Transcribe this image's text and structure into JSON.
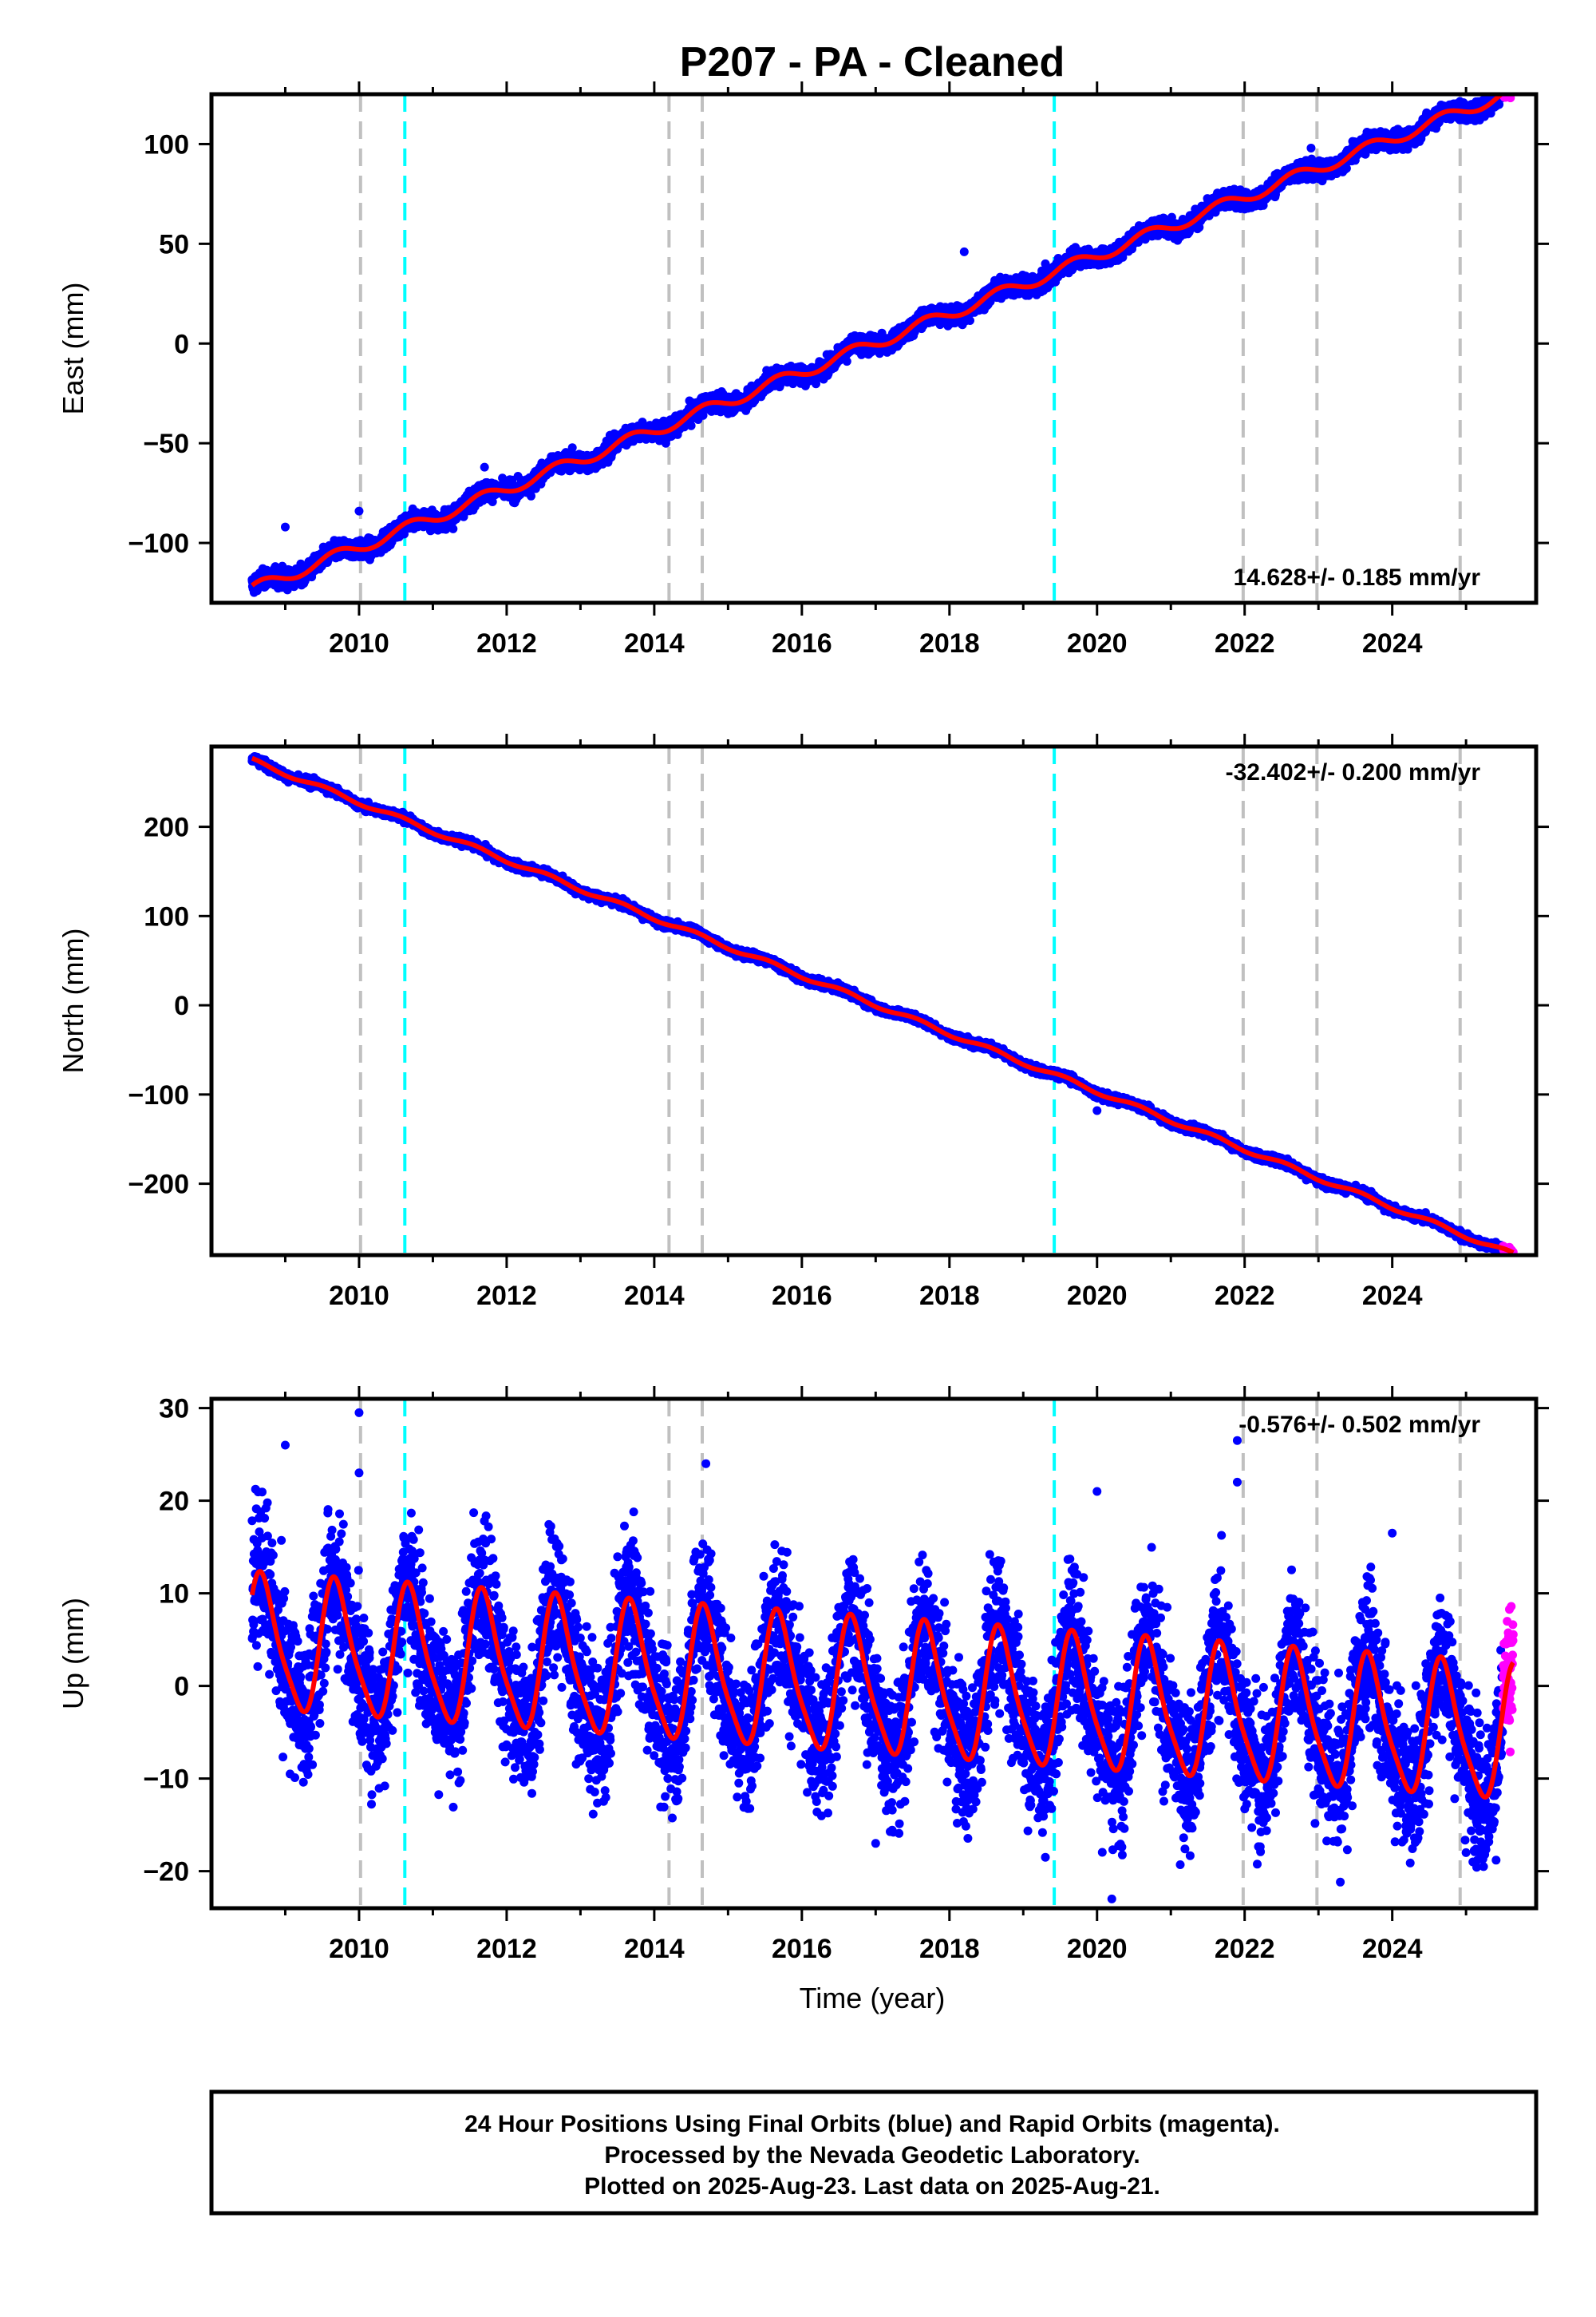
{
  "title": "P207  - PA - Cleaned",
  "xlabel": "Time (year)",
  "footer_lines": [
    "24 Hour Positions Using Final Orbits (blue) and Rapid Orbits (magenta).",
    "Processed by the Nevada Geodetic Laboratory.",
    "Plotted on 2025-Aug-23. Last data on 2025-Aug-21."
  ],
  "colors": {
    "final_orbits": "#0000ff",
    "rapid_orbits": "#ff00ff",
    "fit": "#ff0000",
    "equipment_change": "#c0c0c0",
    "earthquake": "#00ffff"
  },
  "chart_data": [
    {
      "type": "scatter",
      "name": "east",
      "ylabel": "East (mm)",
      "rate_label": "14.628+/- 0.185 mm/yr",
      "rate_position": "bottom-right",
      "xlim": [
        2008.0,
        2025.95
      ],
      "ylim": [
        -130,
        125
      ],
      "xticks": [
        2010,
        2012,
        2014,
        2016,
        2018,
        2020,
        2022,
        2024
      ],
      "yticks": [
        -100,
        -50,
        0,
        50,
        100
      ],
      "ytick_labels": [
        "−100",
        "−50",
        "0",
        "50",
        "100"
      ],
      "fit": {
        "t0": 2008.5,
        "start": -124,
        "slope": 14.628,
        "annual_amp": 3,
        "annual_phase": 0.4,
        "semiannual_amp": 0,
        "semiannual_phase": 0
      },
      "noise_mm": 2.2,
      "rapid_end_value": 116,
      "outliers": [
        [
          2009.0,
          -92
        ],
        [
          2010.0,
          -84
        ],
        [
          2011.7,
          -62
        ],
        [
          2013.4,
          -46
        ],
        [
          2018.2,
          46
        ],
        [
          2019.3,
          40
        ],
        [
          2022.9,
          98
        ]
      ]
    },
    {
      "type": "scatter",
      "name": "north",
      "ylabel": "North (mm)",
      "rate_label": "-32.402+/- 0.200 mm/yr",
      "rate_position": "top-right",
      "xlim": [
        2008.0,
        2025.95
      ],
      "ylim": [
        -280,
        290
      ],
      "xticks": [
        2010,
        2012,
        2014,
        2016,
        2018,
        2020,
        2022,
        2024
      ],
      "yticks": [
        -200,
        -100,
        0,
        100,
        200
      ],
      "ytick_labels": [
        "−200",
        "−100",
        "0",
        "100",
        "200"
      ],
      "fit": {
        "t0": 2008.5,
        "start": 276,
        "slope": -32.402,
        "annual_amp": 2.5,
        "annual_phase": 1.2,
        "semiannual_amp": 0,
        "semiannual_phase": 0
      },
      "noise_mm": 2.2,
      "rapid_end_value": -268,
      "outliers": [
        [
          2020.0,
          -118
        ]
      ]
    },
    {
      "type": "scatter",
      "name": "up",
      "ylabel": "Up (mm)",
      "rate_label": "-0.576+/- 0.502 mm/yr",
      "rate_position": "top-right",
      "xlim": [
        2008.0,
        2025.95
      ],
      "ylim": [
        -24,
        31
      ],
      "xticks": [
        2010,
        2012,
        2014,
        2016,
        2018,
        2020,
        2022,
        2024
      ],
      "yticks": [
        -20,
        -10,
        0,
        10,
        20,
        30
      ],
      "ytick_labels": [
        "−20",
        "−10",
        "0",
        "10",
        "20",
        "30"
      ],
      "fit": {
        "t0": 2008.5,
        "start": 4.5,
        "slope": -0.576,
        "annual_amp": 7.0,
        "annual_phase": 0.35,
        "semiannual_amp": 1.4,
        "semiannual_phase": 0.2
      },
      "noise_mm": 3.8,
      "rapid_end_value": -1,
      "outliers": [
        [
          2009.0,
          26
        ],
        [
          2010.0,
          29.5
        ],
        [
          2010.0,
          23
        ],
        [
          2014.7,
          24
        ],
        [
          2020.0,
          21
        ],
        [
          2021.9,
          26.5
        ],
        [
          2021.9,
          22
        ],
        [
          2024.0,
          16.5
        ],
        [
          2020.2,
          -23
        ],
        [
          2019.3,
          -18.5
        ],
        [
          2017.0,
          -17
        ],
        [
          2025.0,
          -18
        ]
      ]
    }
  ],
  "events": {
    "equipment_change": [
      2010.02,
      2014.2,
      2014.65,
      2021.98,
      2022.98,
      2024.92
    ],
    "earthquake": [
      2010.62,
      2019.42
    ]
  },
  "data_span": {
    "start": 2008.55,
    "rapid_start": 2025.5,
    "end": 2025.64
  }
}
